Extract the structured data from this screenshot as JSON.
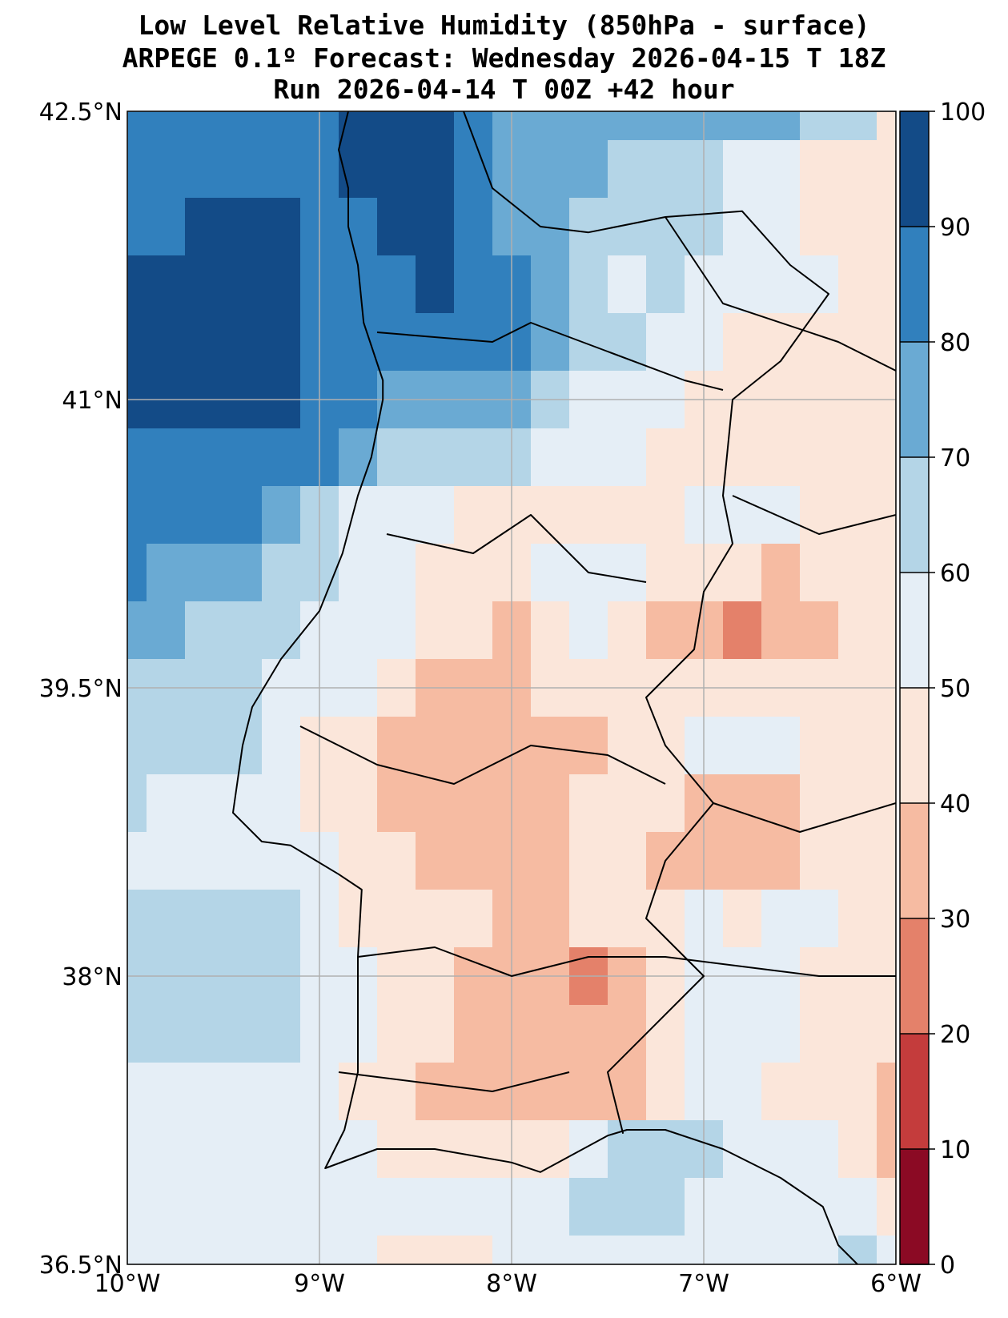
{
  "title": {
    "line1": "Low Level Relative Humidity (850hPa - surface)",
    "line2": "ARPEGE 0.1º Forecast: Wednesday 2026-04-15 T 18Z",
    "line3": "Run 2026-04-14 T 00Z +42 hour"
  },
  "axes": {
    "lon_range": [
      -10,
      -6
    ],
    "lat_range": [
      36.5,
      42.5
    ],
    "x_ticks": [
      {
        "value": -10,
        "label": "10°W"
      },
      {
        "value": -9,
        "label": "9°W"
      },
      {
        "value": -8,
        "label": "8°W"
      },
      {
        "value": -7,
        "label": "7°W"
      },
      {
        "value": -6,
        "label": "6°W"
      }
    ],
    "y_ticks": [
      {
        "value": 42.5,
        "label": "42.5°N"
      },
      {
        "value": 41,
        "label": "41°N"
      },
      {
        "value": 39.5,
        "label": "39.5°N"
      },
      {
        "value": 38,
        "label": "38°N"
      },
      {
        "value": 36.5,
        "label": "36.5°N"
      }
    ],
    "grid": true
  },
  "colorbar": {
    "levels": [
      {
        "value": 0,
        "label": "0"
      },
      {
        "value": 10,
        "label": "10"
      },
      {
        "value": 20,
        "label": "20"
      },
      {
        "value": 30,
        "label": "30"
      },
      {
        "value": 40,
        "label": "40"
      },
      {
        "value": 50,
        "label": "50"
      },
      {
        "value": 60,
        "label": "60"
      },
      {
        "value": 70,
        "label": "70"
      },
      {
        "value": 80,
        "label": "80"
      },
      {
        "value": 90,
        "label": "90"
      },
      {
        "value": 100,
        "label": "100"
      }
    ],
    "colors": [
      "#8b0a24",
      "#c43c3c",
      "#e4816a",
      "#f6bba2",
      "#fbe6da",
      "#e5eef6",
      "#b4d5e7",
      "#6aaad3",
      "#3180bd",
      "#134b87"
    ]
  },
  "humidity_field": {
    "lon": [
      -10.0,
      -9.8,
      -9.6,
      -9.4,
      -9.2,
      -9.0,
      -8.8,
      -8.6,
      -8.4,
      -8.2,
      -8.0,
      -7.8,
      -7.6,
      -7.4,
      -7.2,
      -7.0,
      -6.8,
      -6.6,
      -6.4,
      -6.2,
      -6.0
    ],
    "lat": [
      42.5,
      42.2,
      41.9,
      41.6,
      41.3,
      41.0,
      40.7,
      40.4,
      40.1,
      39.8,
      39.5,
      39.2,
      38.9,
      38.6,
      38.3,
      38.0,
      37.7,
      37.4,
      37.1,
      36.8,
      36.5
    ],
    "values_percent": [
      [
        85,
        85,
        85,
        85,
        85,
        88,
        92,
        95,
        95,
        85,
        75,
        72,
        78,
        75,
        72,
        78,
        75,
        72,
        65,
        60,
        45
      ],
      [
        85,
        85,
        85,
        85,
        85,
        88,
        90,
        95,
        95,
        85,
        75,
        70,
        72,
        68,
        65,
        62,
        58,
        52,
        48,
        45,
        45
      ],
      [
        85,
        88,
        90,
        92,
        90,
        88,
        88,
        90,
        95,
        85,
        75,
        70,
        65,
        62,
        60,
        60,
        55,
        50,
        47,
        45,
        45
      ],
      [
        92,
        92,
        92,
        92,
        92,
        88,
        85,
        85,
        90,
        85,
        80,
        72,
        60,
        58,
        62,
        58,
        55,
        52,
        50,
        48,
        45
      ],
      [
        92,
        92,
        92,
        92,
        92,
        88,
        85,
        85,
        85,
        85,
        80,
        72,
        65,
        62,
        55,
        50,
        47,
        45,
        45,
        45,
        45
      ],
      [
        92,
        92,
        92,
        92,
        92,
        88,
        80,
        78,
        75,
        78,
        75,
        65,
        55,
        52,
        50,
        47,
        45,
        45,
        44,
        45,
        45
      ],
      [
        88,
        88,
        88,
        86,
        85,
        82,
        70,
        62,
        60,
        65,
        62,
        58,
        55,
        50,
        48,
        46,
        45,
        42,
        40,
        42,
        45
      ],
      [
        85,
        85,
        82,
        80,
        75,
        68,
        58,
        55,
        50,
        47,
        48,
        46,
        45,
        45,
        45,
        50,
        55,
        55,
        48,
        45,
        45
      ],
      [
        80,
        78,
        75,
        70,
        65,
        60,
        55,
        50,
        47,
        46,
        45,
        50,
        55,
        52,
        48,
        45,
        40,
        38,
        42,
        45,
        45
      ],
      [
        72,
        70,
        68,
        65,
        62,
        58,
        55,
        50,
        45,
        40,
        38,
        42,
        50,
        45,
        38,
        35,
        28,
        30,
        38,
        42,
        45
      ],
      [
        65,
        64,
        62,
        60,
        58,
        55,
        50,
        45,
        38,
        35,
        38,
        40,
        42,
        45,
        48,
        45,
        40,
        40,
        42,
        44,
        45
      ],
      [
        65,
        64,
        62,
        60,
        55,
        48,
        42,
        38,
        35,
        35,
        34,
        32,
        38,
        45,
        46,
        50,
        52,
        50,
        48,
        45,
        45
      ],
      [
        60,
        58,
        56,
        54,
        52,
        48,
        42,
        36,
        35,
        35,
        34,
        38,
        42,
        45,
        42,
        38,
        32,
        35,
        40,
        45,
        45
      ],
      [
        55,
        55,
        55,
        55,
        55,
        52,
        48,
        45,
        38,
        35,
        34,
        36,
        40,
        42,
        35,
        30,
        35,
        38,
        42,
        45,
        45
      ],
      [
        62,
        62,
        62,
        62,
        62,
        55,
        48,
        45,
        42,
        40,
        35,
        38,
        42,
        46,
        48,
        50,
        48,
        52,
        50,
        45,
        45
      ],
      [
        62,
        62,
        62,
        62,
        60,
        55,
        50,
        48,
        45,
        38,
        32,
        30,
        28,
        30,
        40,
        52,
        55,
        50,
        48,
        44,
        45
      ],
      [
        62,
        62,
        62,
        62,
        62,
        55,
        50,
        46,
        44,
        38,
        34,
        34,
        32,
        36,
        42,
        52,
        55,
        50,
        44,
        40,
        42
      ],
      [
        55,
        55,
        55,
        55,
        54,
        52,
        48,
        44,
        38,
        36,
        34,
        33,
        35,
        38,
        44,
        50,
        50,
        48,
        46,
        42,
        35
      ],
      [
        58,
        57,
        56,
        55,
        54,
        52,
        50,
        45,
        42,
        40,
        42,
        45,
        50,
        60,
        62,
        62,
        58,
        54,
        50,
        45,
        38
      ],
      [
        55,
        55,
        55,
        55,
        55,
        55,
        55,
        55,
        55,
        55,
        55,
        55,
        60,
        62,
        60,
        55,
        52,
        50,
        50,
        50,
        45
      ],
      [
        55,
        55,
        55,
        55,
        55,
        55,
        55,
        45,
        42,
        45,
        55,
        55,
        55,
        55,
        55,
        55,
        55,
        55,
        58,
        60,
        55
      ]
    ]
  }
}
